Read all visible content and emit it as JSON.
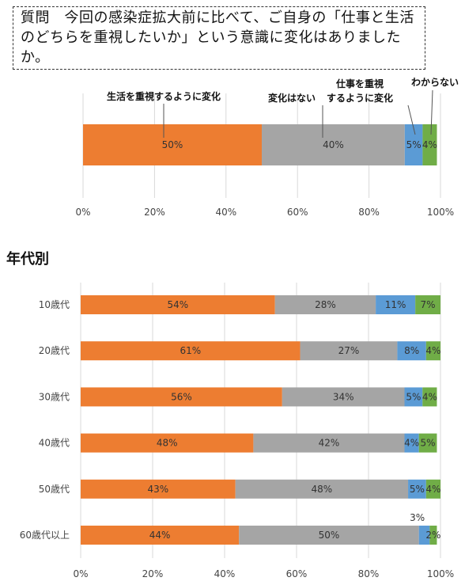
{
  "question": {
    "text": "質問　今回の感染症拡大前に比べて、ご自身の「仕事と生活のどちらを重視したいか」という意識に変化はありましたか。"
  },
  "section_title": "年代別",
  "colors": {
    "life": "#ED7D31",
    "no_change": "#A5A5A5",
    "work": "#5B9BD5",
    "unknown": "#70AD47",
    "grid": "#D9D9D9"
  },
  "chart_data": [
    {
      "type": "bar",
      "orientation": "horizontal",
      "stacked": true,
      "xlim": [
        0,
        100
      ],
      "x_ticks": [
        "0%",
        "20%",
        "40%",
        "60%",
        "80%",
        "100%"
      ],
      "series": [
        {
          "name": "生活を重視するように変化",
          "values": [
            50
          ]
        },
        {
          "name": "変化はない",
          "values": [
            40
          ]
        },
        {
          "name": "仕事を重視するように変化",
          "values": [
            5
          ]
        },
        {
          "name": "わからない",
          "values": [
            4
          ]
        }
      ],
      "annotations": [
        {
          "text": "生活を重視するように変化"
        },
        {
          "text": "変化はない"
        },
        {
          "text": "仕事を重視\nするように変化"
        },
        {
          "text": "わからない"
        }
      ],
      "grid": true
    },
    {
      "type": "bar",
      "orientation": "horizontal",
      "stacked": true,
      "xlim": [
        0,
        100
      ],
      "x_ticks": [
        "0%",
        "20%",
        "40%",
        "60%",
        "80%",
        "100%"
      ],
      "categories": [
        "10歳代",
        "20歳代",
        "30歳代",
        "40歳代",
        "50歳代",
        "60歳代以上"
      ],
      "series": [
        {
          "name": "生活を重視するように変化",
          "values": [
            54,
            61,
            56,
            48,
            43,
            44
          ]
        },
        {
          "name": "変化はない",
          "values": [
            28,
            27,
            34,
            42,
            48,
            50
          ]
        },
        {
          "name": "仕事を重視するように変化",
          "values": [
            11,
            8,
            5,
            4,
            5,
            3
          ]
        },
        {
          "name": "わからない",
          "values": [
            7,
            4,
            4,
            5,
            4,
            2
          ]
        }
      ],
      "grid": true
    }
  ]
}
